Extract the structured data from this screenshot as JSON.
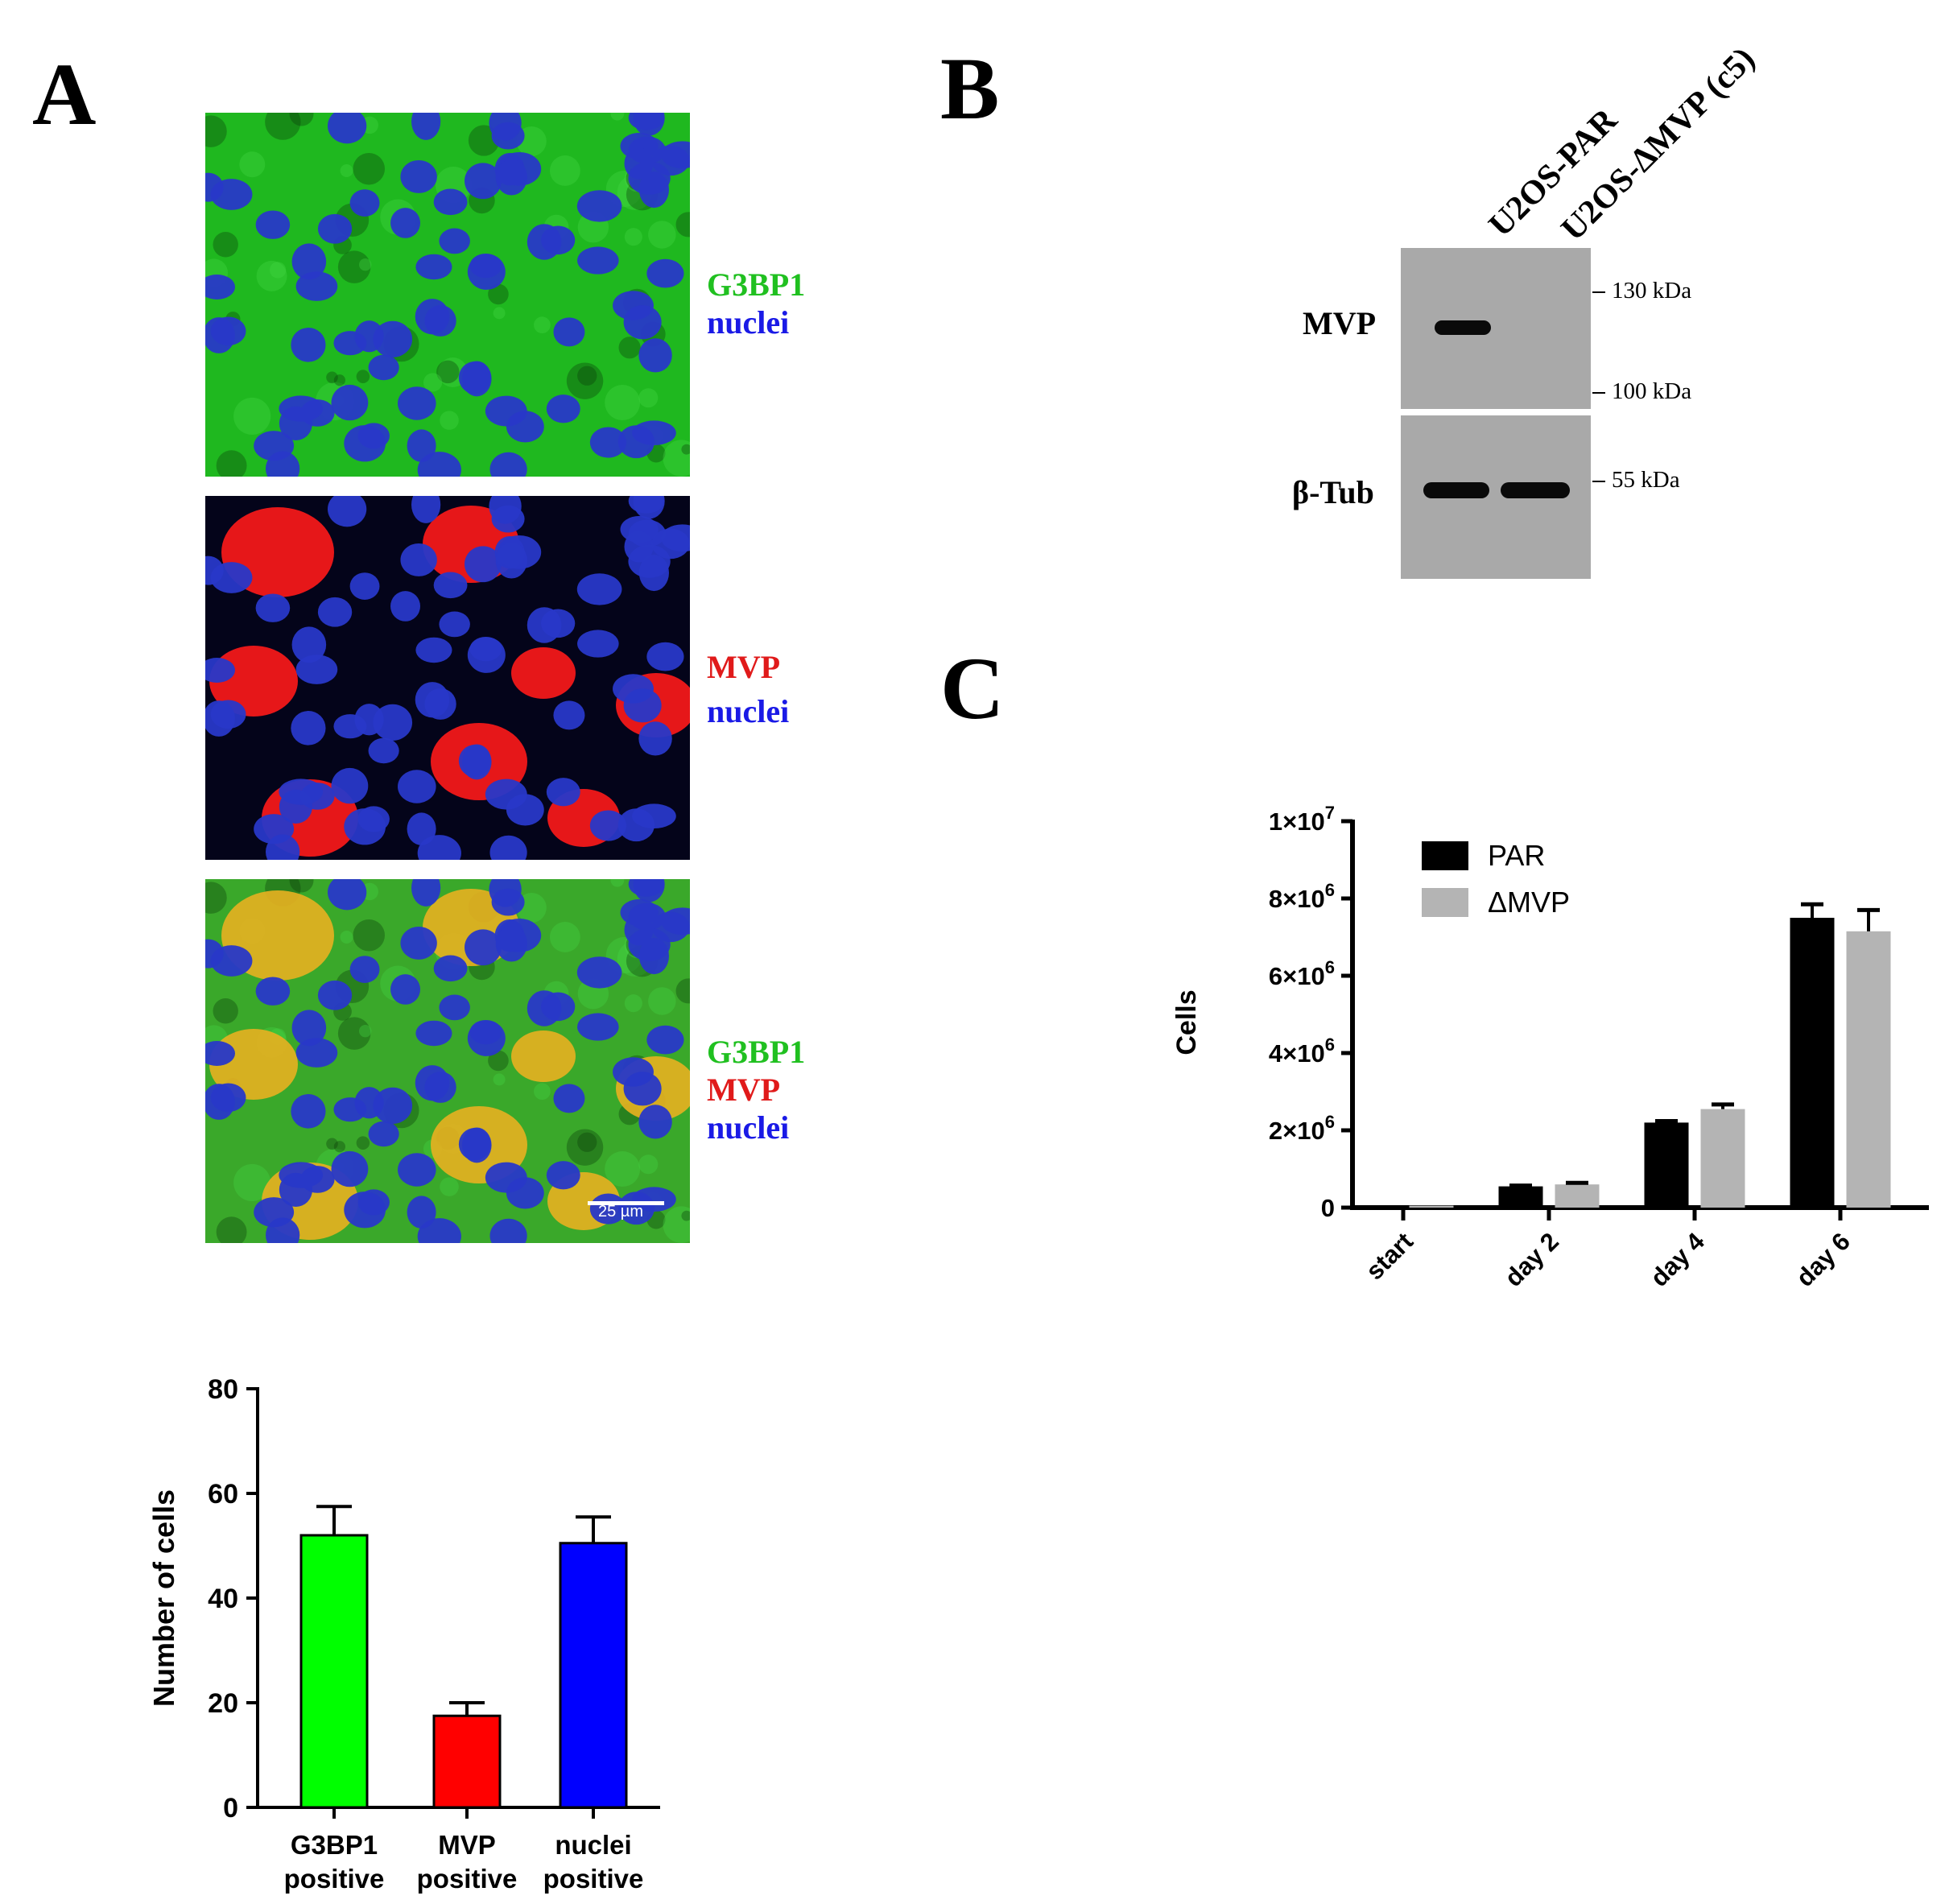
{
  "panels": {
    "a": "A",
    "b": "B",
    "c": "C"
  },
  "panel_a": {
    "image_labels": [
      [
        {
          "text": "G3BP1",
          "color": "#20c020"
        },
        {
          "text": "nuclei",
          "color": "#1a1ae6"
        }
      ],
      [
        {
          "text": "MVP",
          "color": "#e01a1a"
        },
        {
          "text": "nuclei",
          "color": "#1a1ae6"
        }
      ],
      [
        {
          "text": "G3BP1",
          "color": "#20c020"
        },
        {
          "text": "MVP",
          "color": "#e01a1a"
        },
        {
          "text": "nuclei",
          "color": "#1a1ae6"
        }
      ]
    ],
    "scale_bar_label": "25 µm"
  },
  "panel_b": {
    "lane_labels": [
      "U2OS-PAR",
      "U2OS-ΔMVP (c5)"
    ],
    "row_labels": [
      "MVP",
      "β-Tub"
    ],
    "markers": [
      "130 kDa",
      "100 kDa",
      "55 kDa"
    ]
  },
  "chart_data": [
    {
      "type": "bar",
      "categories": [
        [
          "G3BP1",
          "positive"
        ],
        [
          "MVP",
          "positive"
        ],
        [
          "nuclei",
          "positive"
        ]
      ],
      "values": [
        52,
        17.5,
        50.5
      ],
      "errors": [
        5.5,
        2.5,
        5
      ],
      "colors": [
        "#00ff00",
        "#ff0000",
        "#0000ff"
      ],
      "xlabel": "",
      "ylabel": "Number of cells",
      "ylim": [
        0,
        80
      ],
      "yticks": [
        "0",
        "20",
        "40",
        "60",
        "80"
      ]
    },
    {
      "type": "bar",
      "categories": [
        "start",
        "day 2",
        "day 4",
        "day 6"
      ],
      "series": [
        {
          "name": "PAR",
          "color": "#000000",
          "values": [
            50000,
            550000,
            2200000,
            7500000
          ],
          "errors": [
            0,
            20000,
            40000,
            350000
          ]
        },
        {
          "name": "ΔMVP",
          "color": "#b4b4b4",
          "values": [
            50000,
            600000,
            2550000,
            7150000
          ],
          "errors": [
            0,
            40000,
            120000,
            550000
          ]
        }
      ],
      "xlabel": "",
      "ylabel": "Cells",
      "ylim": [
        0,
        10000000
      ],
      "yticks": [
        {
          "value": 0,
          "base": "0",
          "exp": ""
        },
        {
          "value": 2000000,
          "base": "2×10",
          "exp": "6"
        },
        {
          "value": 4000000,
          "base": "4×10",
          "exp": "6"
        },
        {
          "value": 6000000,
          "base": "6×10",
          "exp": "6"
        },
        {
          "value": 8000000,
          "base": "8×10",
          "exp": "6"
        },
        {
          "value": 10000000,
          "base": "1×10",
          "exp": "7"
        }
      ],
      "legend": "top-left"
    }
  ]
}
